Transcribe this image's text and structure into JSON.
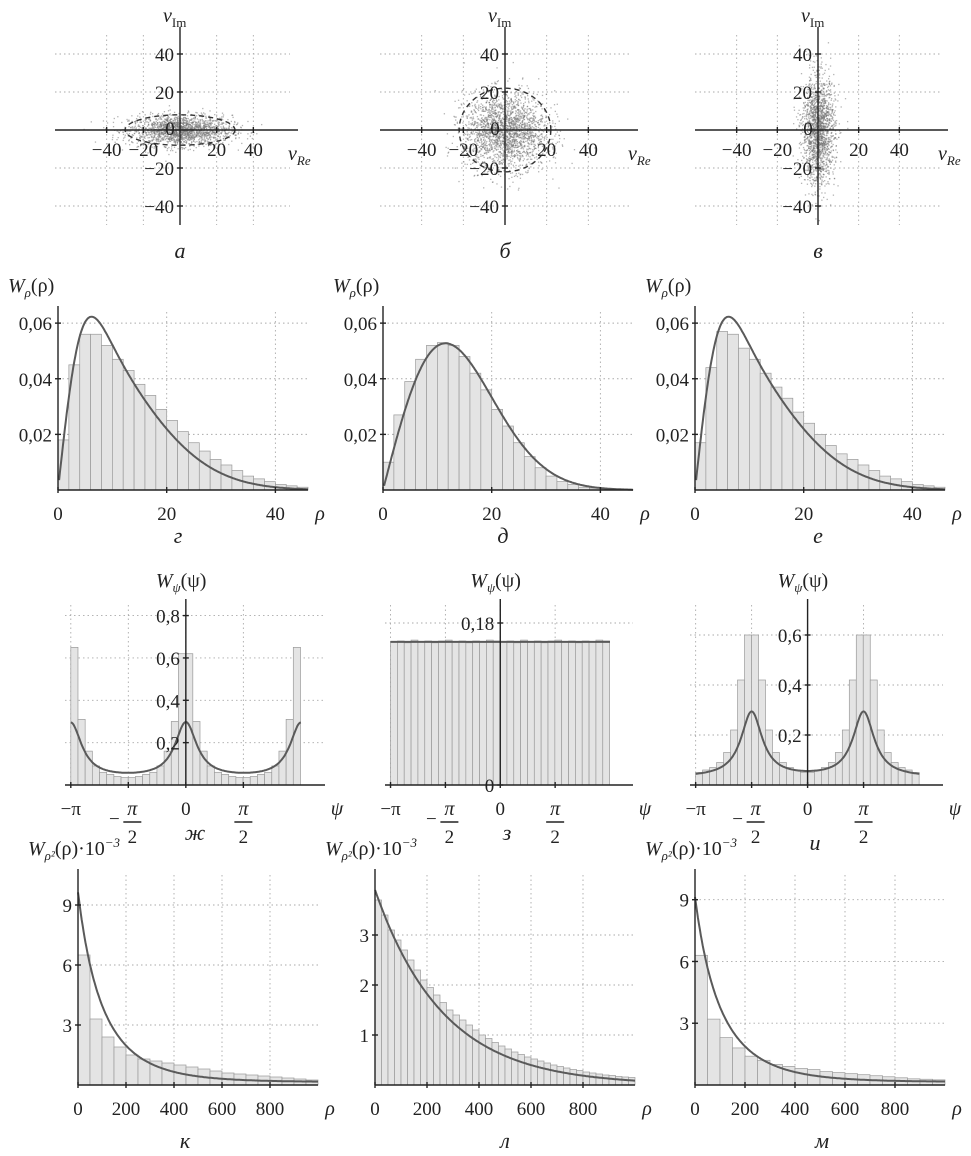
{
  "chart_data": [
    {
      "id": "a",
      "type": "scatter",
      "caption": "а",
      "xlabel": "v",
      "xlabel_sub": "Re",
      "ylabel": "v",
      "ylabel_sub": "Im",
      "xlim": [
        -60,
        60
      ],
      "ylim": [
        -50,
        50
      ],
      "xticks": [
        -40,
        -20,
        0,
        20,
        40
      ],
      "yticks": [
        -40,
        -20,
        0,
        20,
        40
      ],
      "xtick_labels": [
        "−40",
        "−20",
        "0",
        "20",
        "40"
      ],
      "ytick_labels": [
        "−40",
        "−20",
        "0",
        "20",
        "40"
      ],
      "cloud": {
        "sigma_re": 14,
        "sigma_im": 4,
        "count": 1800
      },
      "ellipse": {
        "rx": 30,
        "ry": 8
      }
    },
    {
      "id": "b",
      "type": "scatter",
      "caption": "б",
      "xlabel": "v",
      "xlabel_sub": "Re",
      "ylabel": "v",
      "ylabel_sub": "Im",
      "xlim": [
        -60,
        60
      ],
      "ylim": [
        -50,
        50
      ],
      "xticks": [
        -40,
        -20,
        0,
        20,
        40
      ],
      "yticks": [
        -40,
        -20,
        0,
        20,
        40
      ],
      "xtick_labels": [
        "−40",
        "−20",
        "0",
        "20",
        "40"
      ],
      "ytick_labels": [
        "−40",
        "−20",
        "0",
        "20",
        "40"
      ],
      "cloud": {
        "sigma_re": 10,
        "sigma_im": 10,
        "count": 2200
      },
      "ellipse": {
        "rx": 22,
        "ry": 22
      }
    },
    {
      "id": "c",
      "type": "scatter",
      "caption": "в",
      "xlabel": "v",
      "xlabel_sub": "Re",
      "ylabel": "v",
      "ylabel_sub": "Im",
      "xlim": [
        -60,
        60
      ],
      "ylim": [
        -50,
        50
      ],
      "xticks": [
        -40,
        -20,
        0,
        20,
        40
      ],
      "yticks": [
        -40,
        -20,
        0,
        20,
        40
      ],
      "xtick_labels": [
        "−40",
        "−20",
        "0",
        "20",
        "40"
      ],
      "ytick_labels": [
        "−40",
        "−20",
        "0",
        "20",
        "40"
      ],
      "cloud": {
        "sigma_re": 4,
        "sigma_im": 14,
        "count": 1800
      },
      "ellipse": {
        "rx": 0,
        "ry": 0
      }
    },
    {
      "id": "g",
      "type": "bar",
      "caption": "г",
      "xlabel": "ρ",
      "ylabel": "W",
      "ylabel_sub": "ρ",
      "ylabel_tail": "(ρ)",
      "xlim": [
        0,
        46
      ],
      "ylim": [
        0,
        0.064
      ],
      "xticks": [
        0,
        20,
        40
      ],
      "yticks": [
        0.02,
        0.04,
        0.06
      ],
      "xtick_labels": [
        "0",
        "20",
        "40"
      ],
      "ytick_labels": [
        "0,02",
        "0,04",
        "0,06"
      ],
      "bin_width": 2,
      "values": [
        0.018,
        0.045,
        0.056,
        0.056,
        0.052,
        0.047,
        0.043,
        0.038,
        0.034,
        0.029,
        0.025,
        0.021,
        0.017,
        0.014,
        0.011,
        0.009,
        0.007,
        0.005,
        0.004,
        0.003,
        0.002,
        0.0015,
        0.001
      ],
      "curve": {
        "kind": "rice_like",
        "sigma": [
          14,
          4
        ]
      }
    },
    {
      "id": "d",
      "type": "bar",
      "caption": "д",
      "xlabel": "ρ",
      "ylabel": "W",
      "ylabel_sub": "ρ",
      "ylabel_tail": "(ρ)",
      "xlim": [
        0,
        46
      ],
      "ylim": [
        0,
        0.064
      ],
      "xticks": [
        0,
        20,
        40
      ],
      "yticks": [
        0.02,
        0.04,
        0.06
      ],
      "xtick_labels": [
        "0",
        "20",
        "40"
      ],
      "ytick_labels": [
        "0,02",
        "0,04",
        "0,06"
      ],
      "bin_width": 2,
      "values": [
        0.01,
        0.027,
        0.039,
        0.047,
        0.052,
        0.053,
        0.052,
        0.048,
        0.042,
        0.036,
        0.029,
        0.023,
        0.017,
        0.012,
        0.008,
        0.005,
        0.003,
        0.002,
        0.001,
        0.0007,
        0.0004,
        0.0002,
        0.0001
      ],
      "curve": {
        "kind": "rayleigh",
        "sigma": [
          11.5,
          11.5
        ]
      }
    },
    {
      "id": "e",
      "type": "bar",
      "caption": "е",
      "xlabel": "ρ",
      "ylabel": "W",
      "ylabel_sub": "ρ",
      "ylabel_tail": "(ρ)",
      "xlim": [
        0,
        46
      ],
      "ylim": [
        0,
        0.064
      ],
      "xticks": [
        0,
        20,
        40
      ],
      "yticks": [
        0.02,
        0.04,
        0.06
      ],
      "xtick_labels": [
        "0",
        "20",
        "40"
      ],
      "ytick_labels": [
        "0,02",
        "0,04",
        "0,06"
      ],
      "bin_width": 2,
      "values": [
        0.017,
        0.044,
        0.057,
        0.056,
        0.051,
        0.047,
        0.042,
        0.037,
        0.033,
        0.028,
        0.024,
        0.02,
        0.016,
        0.013,
        0.011,
        0.009,
        0.007,
        0.005,
        0.004,
        0.003,
        0.002,
        0.0015,
        0.001
      ],
      "curve": {
        "kind": "rice_like",
        "sigma": [
          4,
          14
        ]
      }
    },
    {
      "id": "zh",
      "type": "bar",
      "caption": "ж",
      "xlabel": "ψ",
      "ylabel": "W",
      "ylabel_sub": "ψ",
      "ylabel_tail": "(ψ)",
      "xlim": [
        -3.3,
        3.8
      ],
      "ylim": [
        0,
        0.85
      ],
      "xticks": [
        -3.1416,
        -1.5708,
        0,
        1.5708
      ],
      "yticks": [
        0.2,
        0.4,
        0.6,
        0.8
      ],
      "xtick_labels": [
        "−π",
        "−π/2",
        "0",
        "π/2"
      ],
      "ytick_labels": [
        "0,2",
        "0,4",
        "0,6",
        "0,8"
      ],
      "bin_width": 0.196,
      "values": [
        0.65,
        0.31,
        0.16,
        0.09,
        0.06,
        0.05,
        0.04,
        0.035,
        0.035,
        0.04,
        0.05,
        0.06,
        0.09,
        0.16,
        0.3,
        0.62,
        0.62,
        0.3,
        0.16,
        0.09,
        0.06,
        0.05,
        0.04,
        0.035,
        0.035,
        0.04,
        0.05,
        0.06,
        0.09,
        0.16,
        0.31,
        0.65
      ],
      "curve": {
        "kind": "phase_peaks",
        "a": 0.29,
        "peaks": [
          0,
          3.1416,
          -3.1416
        ]
      }
    },
    {
      "id": "z",
      "type": "bar",
      "caption": "з",
      "xlabel": "ψ",
      "ylabel": "W",
      "ylabel_sub": "ψ",
      "ylabel_tail": "(ψ)",
      "xlim": [
        -3.3,
        3.8
      ],
      "ylim": [
        0,
        0.2
      ],
      "xticks": [
        -3.1416,
        -1.5708,
        0,
        1.5708
      ],
      "yticks": [
        0,
        0.18
      ],
      "xtick_labels": [
        "−π",
        "−π/2",
        "0",
        "π/2"
      ],
      "ytick_labels": [
        "0",
        "0,18"
      ],
      "bin_width": 0.196,
      "values": [
        0.159,
        0.16,
        0.158,
        0.161,
        0.159,
        0.16,
        0.158,
        0.16,
        0.161,
        0.159,
        0.16,
        0.158,
        0.16,
        0.159,
        0.161,
        0.16,
        0.159,
        0.16,
        0.158,
        0.161,
        0.159,
        0.16,
        0.158,
        0.16,
        0.161,
        0.159,
        0.16,
        0.158,
        0.16,
        0.159,
        0.161,
        0.16
      ],
      "curve": {
        "kind": "uniform",
        "level": 0.159
      }
    },
    {
      "id": "i",
      "type": "bar",
      "caption": "и",
      "xlabel": "ψ",
      "ylabel": "W",
      "ylabel_sub": "ψ",
      "ylabel_tail": "(ψ)",
      "xlim": [
        -3.3,
        3.8
      ],
      "ylim": [
        0,
        0.72
      ],
      "xticks": [
        -3.1416,
        -1.5708,
        0,
        1.5708
      ],
      "yticks": [
        0.2,
        0.4,
        0.6
      ],
      "xtick_labels": [
        "−π",
        "−π/2",
        "0",
        "π/2"
      ],
      "ytick_labels": [
        "0,2",
        "0,4",
        "0,6"
      ],
      "bin_width": 0.196,
      "values": [
        0.05,
        0.06,
        0.07,
        0.09,
        0.13,
        0.22,
        0.42,
        0.6,
        0.6,
        0.42,
        0.22,
        0.13,
        0.09,
        0.07,
        0.06,
        0.05,
        0.05,
        0.06,
        0.07,
        0.09,
        0.13,
        0.22,
        0.42,
        0.6,
        0.6,
        0.42,
        0.22,
        0.13,
        0.09,
        0.07,
        0.06,
        0.05
      ],
      "curve": {
        "kind": "phase_peaks",
        "a": 0.29,
        "peaks": [
          -1.5708,
          1.5708
        ]
      }
    },
    {
      "id": "k",
      "type": "bar",
      "caption": "к",
      "xlabel": "ρ",
      "ylabel": "W",
      "ylabel_sub": "ρ²",
      "ylabel_tail": "(ρ)·10",
      "ylabel_exp": "−3",
      "xlim": [
        0,
        1000
      ],
      "ylim": [
        0,
        10.5
      ],
      "xticks": [
        0,
        200,
        400,
        600,
        800
      ],
      "yticks": [
        3,
        6,
        9
      ],
      "xtick_labels": [
        "0",
        "200",
        "400",
        "600",
        "800"
      ],
      "ytick_labels": [
        "3",
        "6",
        "9"
      ],
      "bin_width": 50,
      "values": [
        6.5,
        3.3,
        2.4,
        1.9,
        1.5,
        1.3,
        1.2,
        1.1,
        1.0,
        0.9,
        0.8,
        0.7,
        0.6,
        0.55,
        0.5,
        0.45,
        0.4,
        0.35,
        0.3,
        0.25
      ],
      "curve": {
        "kind": "decay",
        "a": 9.5,
        "b": 0.0042,
        "c": 0.0
      }
    },
    {
      "id": "l",
      "type": "bar",
      "caption": "л",
      "xlabel": "ρ",
      "ylabel": "W",
      "ylabel_sub": "ρ²",
      "ylabel_tail": "(ρ)·10",
      "ylabel_exp": "−3",
      "xlim": [
        0,
        1000
      ],
      "ylim": [
        0,
        4.2
      ],
      "xticks": [
        0,
        200,
        400,
        600,
        800
      ],
      "yticks": [
        1,
        2,
        3
      ],
      "xtick_labels": [
        "0",
        "200",
        "400",
        "600",
        "800"
      ],
      "ytick_labels": [
        "1",
        "2",
        "3"
      ],
      "bin_width": 25,
      "values": [
        3.7,
        3.4,
        3.1,
        2.9,
        2.7,
        2.5,
        2.3,
        2.1,
        1.95,
        1.8,
        1.65,
        1.5,
        1.4,
        1.3,
        1.2,
        1.1,
        1.0,
        0.93,
        0.85,
        0.78,
        0.72,
        0.66,
        0.61,
        0.56,
        0.52,
        0.48,
        0.44,
        0.4,
        0.37,
        0.34,
        0.31,
        0.29,
        0.26,
        0.24,
        0.22,
        0.2,
        0.19,
        0.17,
        0.16,
        0.15
      ],
      "curve": {
        "kind": "exp",
        "a": 3.9,
        "b": 0.0038
      }
    },
    {
      "id": "m",
      "type": "bar",
      "caption": "м",
      "xlabel": "ρ",
      "ylabel": "W",
      "ylabel_sub": "ρ²",
      "ylabel_tail": "(ρ)·10",
      "ylabel_exp": "−3",
      "xlim": [
        0,
        1000
      ],
      "ylim": [
        0,
        10.2
      ],
      "xticks": [
        0,
        200,
        400,
        600,
        800
      ],
      "yticks": [
        3,
        6,
        9
      ],
      "xtick_labels": [
        "0",
        "200",
        "400",
        "600",
        "800"
      ],
      "ytick_labels": [
        "3",
        "6",
        "9"
      ],
      "bin_width": 50,
      "values": [
        6.3,
        3.2,
        2.3,
        1.8,
        1.4,
        1.2,
        1.0,
        0.9,
        0.8,
        0.75,
        0.65,
        0.6,
        0.55,
        0.5,
        0.45,
        0.4,
        0.35,
        0.3,
        0.28,
        0.25
      ],
      "curve": {
        "kind": "decay",
        "a": 9.0,
        "b": 0.0042,
        "c": 0.0
      }
    }
  ]
}
